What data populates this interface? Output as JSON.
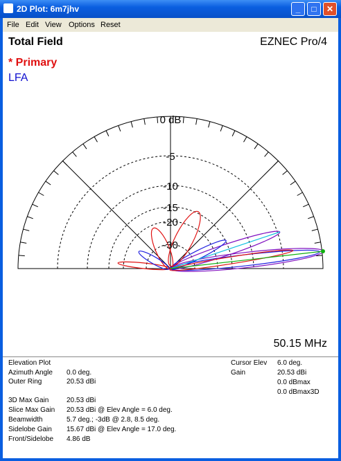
{
  "window": {
    "title": "2D Plot: 6m7jhv",
    "menu": [
      "File",
      "Edit",
      "View",
      "Options",
      "Reset"
    ]
  },
  "plot": {
    "title": "Total Field",
    "program": "EZNEC Pro/4",
    "traces": [
      "* Primary",
      "LFA"
    ],
    "ring_labels": [
      "0 dB",
      "-5",
      "-10",
      "-15",
      "-20",
      "-30"
    ],
    "frequency": "50.15 MHz"
  },
  "info": {
    "heading": "Elevation Plot",
    "rows": [
      [
        "Azimuth Angle",
        "0.0 deg."
      ],
      [
        "Outer Ring",
        "20.53 dBi"
      ]
    ],
    "stats": [
      [
        "3D Max Gain",
        "20.53 dBi"
      ],
      [
        "Slice Max Gain",
        "20.53 dBi @ Elev Angle = 6.0 deg."
      ],
      [
        "Beamwidth",
        "5.7 deg.; -3dB @ 2.8, 8.5 deg."
      ],
      [
        "Sidelobe Gain",
        "15.67 dBi @ Elev Angle = 17.0 deg."
      ],
      [
        "Front/Sidelobe",
        "4.86 dB"
      ]
    ],
    "cursor": [
      [
        "Cursor Elev",
        "6.0 deg."
      ],
      [
        "Gain",
        "20.53 dBi"
      ]
    ],
    "extra": [
      "0.0 dBmax",
      "0.0 dBmax3D"
    ]
  }
}
